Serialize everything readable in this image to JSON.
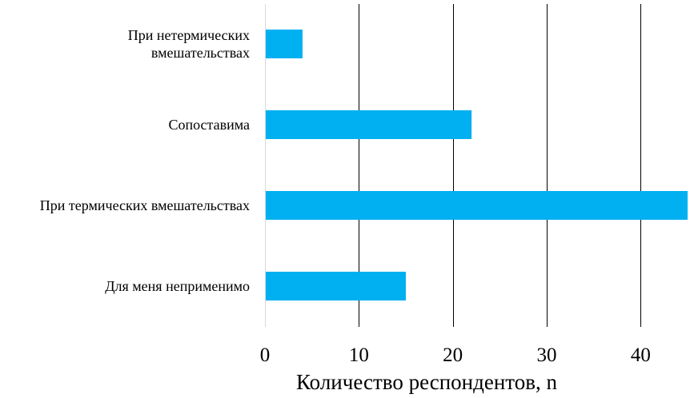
{
  "chart_data": {
    "type": "bar",
    "orientation": "horizontal",
    "categories": [
      "При нетермических вмешательствах",
      "Сопоставима",
      "При термических вмешательствах",
      "Для меня неприменимо"
    ],
    "category_lines": [
      [
        "При нетермических",
        "вмешательствах"
      ],
      [
        "Сопоставима"
      ],
      [
        "При термических вмешательствах"
      ],
      [
        "Для меня неприменимо"
      ]
    ],
    "values": [
      4,
      22,
      45,
      15
    ],
    "title": "",
    "xlabel": "Количество респондентов, n",
    "ylabel": "",
    "xlim": [
      0,
      45
    ],
    "xticks": [
      0,
      10,
      20,
      30,
      40
    ],
    "xtick_labels": [
      "0",
      "10",
      "20",
      "30",
      "40"
    ],
    "grid": "vertical",
    "legend": "none",
    "colors": {
      "bar": "#00B0F0",
      "grid": "#000000",
      "baseline": "#D9D9D9",
      "text": "#000000"
    }
  }
}
